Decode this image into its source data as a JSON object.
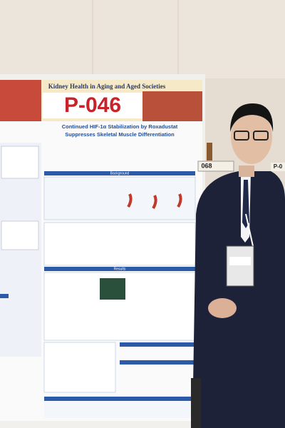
{
  "poster": {
    "banner": "Kidney Health in Aging and Aged Societies",
    "number": "P-046",
    "title": [
      "Continued HIF-1α Stabilization by Roxadustat",
      "Suppresses Skeletal Muscle Differentiation"
    ],
    "sections": [
      "Background",
      "Results"
    ]
  },
  "neighbor_sign": {
    "number": "068",
    "next": "P-0"
  }
}
